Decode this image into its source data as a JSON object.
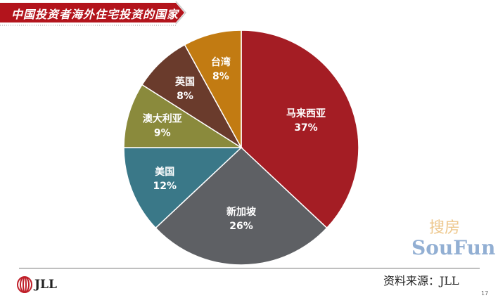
{
  "title": "中国投资者海外住宅投资的国家",
  "chart_data": {
    "type": "pie",
    "title": "中国投资者海外住宅投资的国家",
    "start": "top",
    "direction": "clockwise",
    "slices": [
      {
        "label": "马来西亚",
        "value": 37,
        "display": "37%",
        "color": "#a41d24"
      },
      {
        "label": "新加坡",
        "value": 26,
        "display": "26%",
        "color": "#5e6064"
      },
      {
        "label": "美国",
        "value": 12,
        "display": "12%",
        "color": "#3a7888"
      },
      {
        "label": "澳大利亚",
        "value": 9,
        "display": "9%",
        "color": "#8a8a3c"
      },
      {
        "label": "英国",
        "value": 8,
        "display": "8%",
        "color": "#6a3b2c"
      },
      {
        "label": "台湾",
        "value": 8,
        "display": "8%",
        "color": "#c27b12"
      }
    ]
  },
  "footer": {
    "logo": "JLL",
    "source": "资料来源：JLL",
    "page": "17"
  },
  "watermark": {
    "cn": "搜房",
    "en": "SouFun"
  }
}
